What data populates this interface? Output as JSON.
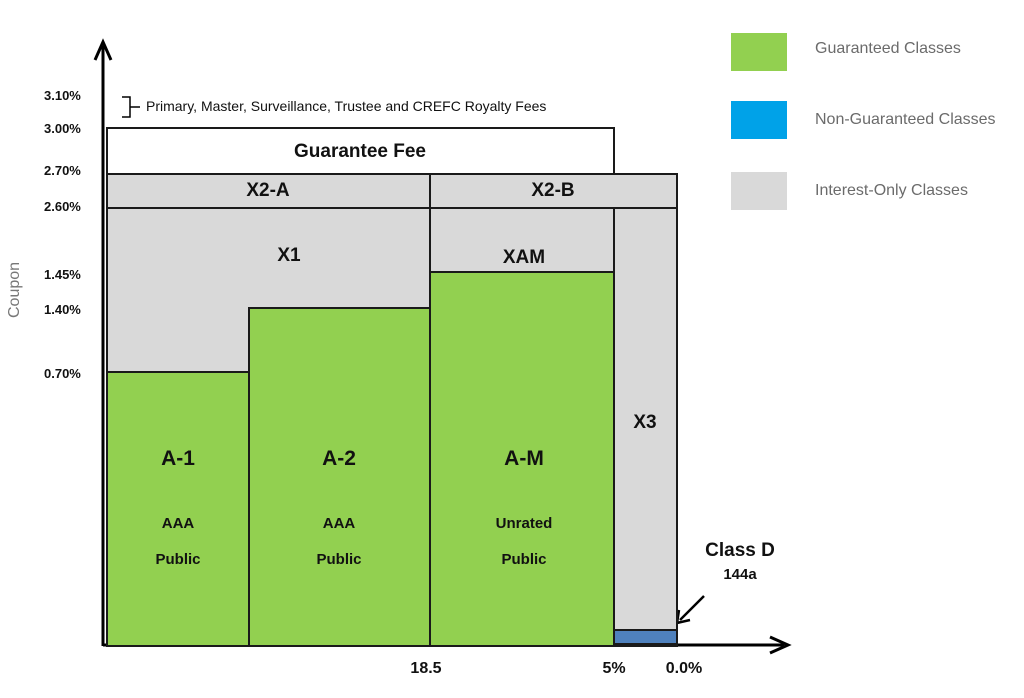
{
  "y_axis": {
    "label": "Coupon",
    "ticks": [
      "3.10%",
      "3.00%",
      "2.70%",
      "2.60%",
      "1.45%",
      "1.40%",
      "0.70%"
    ]
  },
  "x_axis": {
    "ticks": [
      "18.5",
      "5%",
      "0.0%"
    ]
  },
  "fee_note": "Primary, Master, Surveillance, Trustee and CREFC Royalty Fees",
  "guarantee_fee": "Guarantee Fee",
  "io_classes": {
    "x2a": "X2-A",
    "x2b": "X2-B",
    "x1": "X1",
    "xam": "XAM",
    "x3": "X3"
  },
  "classes": [
    {
      "name": "A-1",
      "rating": "AAA",
      "type": "Public"
    },
    {
      "name": "A-2",
      "rating": "AAA",
      "type": "Public"
    },
    {
      "name": "A-M",
      "rating": "Unrated",
      "type": "Public"
    }
  ],
  "class_d": {
    "name": "Class D",
    "type": "144a"
  },
  "legend": [
    {
      "label": "Guaranteed Classes",
      "color": "#92d050"
    },
    {
      "label": "Non-Guaranteed Classes",
      "color": "#00a2e8"
    },
    {
      "label": "Interest-Only Classes",
      "color": "#d9d9d9"
    }
  ],
  "colors": {
    "guaranteed": "#92d050",
    "non_guaranteed_bar": "#4f81bd",
    "interest_only": "#d9d9d9"
  }
}
